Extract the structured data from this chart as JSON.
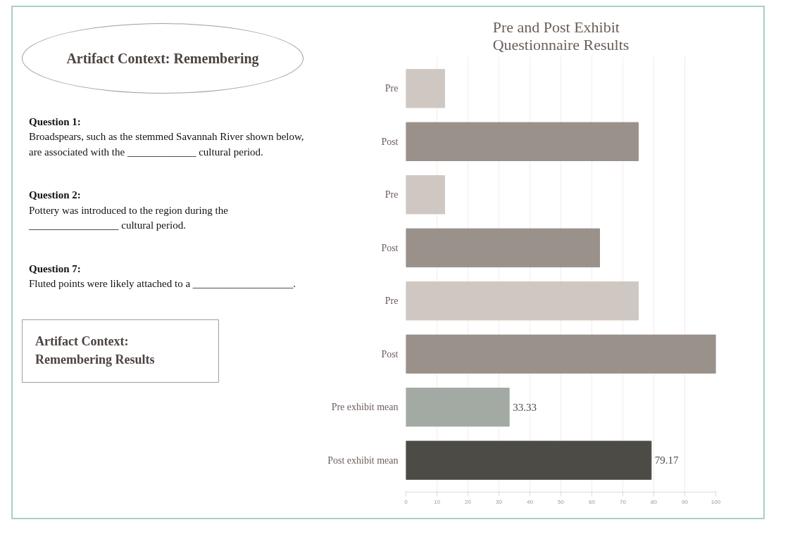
{
  "chart_data": {
    "type": "bar",
    "orientation": "horizontal",
    "title": "Pre and Post Exhibit\nQuestionnaire Results",
    "categories": [
      "Pre",
      "Post",
      "Pre",
      "Post",
      "Pre",
      "Post",
      "Pre exhibit mean",
      "Post exhibit mean"
    ],
    "values": [
      12.5,
      75,
      12.5,
      62.5,
      75,
      100,
      33.33,
      79.17
    ],
    "colors": [
      "#cfc7c2",
      "#9a918b",
      "#cfc7c2",
      "#9a918b",
      "#cfc7c2",
      "#9a918b",
      "#a3aaa4",
      "#4d4b46"
    ],
    "value_labels": [
      null,
      null,
      null,
      null,
      null,
      null,
      "33.33",
      "79.17"
    ],
    "xlim": [
      0,
      100
    ],
    "xticks": [
      0,
      10,
      20,
      30,
      40,
      50,
      60,
      70,
      80,
      90,
      100
    ],
    "grid": "x",
    "annotations": [
      "Artifact Context: Remembering",
      "Question 1:\nBroadspears, such as the stemmed Savannah River shown below, are associated with the _____________ cultural period.",
      "Question 2:\nPottery was introduced to the region during the _________________ cultural period.",
      "Question 7:\nFluted points were likely attached to a ___________________.",
      "Artifact Context:\nRemembering Results"
    ]
  }
}
